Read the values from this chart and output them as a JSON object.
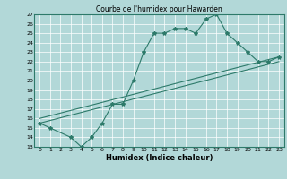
{
  "title": "Courbe de l'humidex pour Hawarden",
  "xlabel": "Humidex (Indice chaleur)",
  "background_color": "#b2d8d8",
  "grid_color": "#ffffff",
  "line_color": "#2d7a6a",
  "xlim": [
    -0.5,
    23.5
  ],
  "ylim": [
    13,
    27
  ],
  "yticks": [
    13,
    14,
    15,
    16,
    17,
    18,
    19,
    20,
    21,
    22,
    23,
    24,
    25,
    26,
    27
  ],
  "xticks": [
    0,
    1,
    2,
    3,
    4,
    5,
    6,
    7,
    8,
    9,
    10,
    11,
    12,
    13,
    14,
    15,
    16,
    17,
    18,
    19,
    20,
    21,
    22,
    23
  ],
  "line1_x": [
    0,
    1,
    3,
    4,
    5,
    6,
    7,
    8,
    9,
    10,
    11,
    12,
    13,
    14,
    15,
    16,
    17,
    18,
    19,
    20,
    21,
    22,
    23
  ],
  "line1_y": [
    15.5,
    15.0,
    14.0,
    13.0,
    14.0,
    15.5,
    17.5,
    17.5,
    20.0,
    23.0,
    25.0,
    25.0,
    25.5,
    25.5,
    25.0,
    26.5,
    27.0,
    25.0,
    24.0,
    23.0,
    22.0,
    22.0,
    22.5
  ],
  "line2_x": [
    0,
    23
  ],
  "line2_y": [
    16.0,
    22.5
  ],
  "line3_x": [
    0,
    23
  ],
  "line3_y": [
    15.5,
    22.0
  ]
}
